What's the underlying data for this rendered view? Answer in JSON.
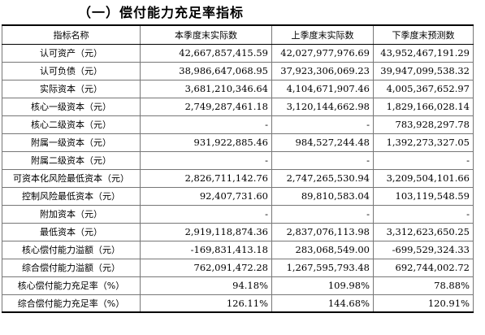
{
  "title": "（一）偿付能力充足率指标",
  "table": {
    "headers": [
      "指标名称",
      "本季度末实际数",
      "上季度末实际数",
      "下季度末预测数"
    ],
    "rows": [
      {
        "name": "认可资产（元）",
        "current": "42,667,857,415.59",
        "previous": "42,027,977,976.69",
        "forecast": "43,952,467,191.29"
      },
      {
        "name": "认可负债（元）",
        "current": "38,986,647,068.95",
        "previous": "37,923,306,069.23",
        "forecast": "39,947,099,538.32"
      },
      {
        "name": "实际资本（元）",
        "current": "3,681,210,346.64",
        "previous": "4,104,671,907.46",
        "forecast": "4,005,367,652.97"
      },
      {
        "name": "核心一级资本（元）",
        "current": "2,749,287,461.18",
        "previous": "3,120,144,662.98",
        "forecast": "1,829,166,028.14"
      },
      {
        "name": "核心二级资本（元）",
        "current": "-",
        "previous": "-",
        "forecast": "783,928,297.78"
      },
      {
        "name": "附属一级资本（元）",
        "current": "931,922,885.46",
        "previous": "984,527,244.48",
        "forecast": "1,392,273,327.05"
      },
      {
        "name": "附属二级资本（元）",
        "current": "-",
        "previous": "-",
        "forecast": "-"
      },
      {
        "name": "可资本化风险最低资本（元）",
        "current": "2,826,711,142.76",
        "previous": "2,747,265,530.94",
        "forecast": "3,209,504,101.66"
      },
      {
        "name": "控制风险最低资本（元）",
        "current": "92,407,731.60",
        "previous": "89,810,583.04",
        "forecast": "103,119,548.59"
      },
      {
        "name": "附加资本（元）",
        "current": "-",
        "previous": "-",
        "forecast": "-"
      },
      {
        "name": "最低资本（元）",
        "current": "2,919,118,874.36",
        "previous": "2,837,076,113.98",
        "forecast": "3,312,623,650.25"
      },
      {
        "name": "核心偿付能力溢额（元）",
        "current": "-169,831,413.18",
        "previous": "283,068,549.00",
        "forecast": "-699,529,324.33"
      },
      {
        "name": "综合偿付能力溢额（元）",
        "current": "762,091,472.28",
        "previous": "1,267,595,793.48",
        "forecast": "692,744,002.72"
      },
      {
        "name": "核心偿付能力充足率（%）",
        "current": "94.18%",
        "previous": "109.98%",
        "forecast": "78.88%"
      },
      {
        "name": "综合偿付能力充足率（%）",
        "current": "126.11%",
        "previous": "144.68%",
        "forecast": "120.91%"
      }
    ]
  }
}
